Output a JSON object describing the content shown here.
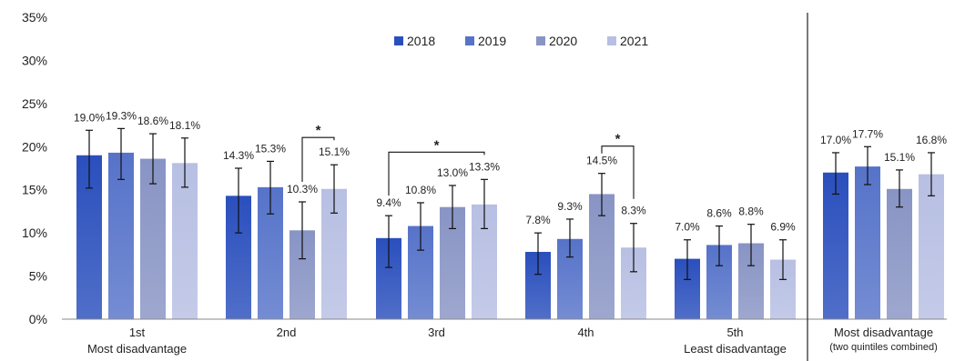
{
  "chart_data": {
    "type": "bar",
    "title": "",
    "ylim": [
      0,
      35
    ],
    "yticks": [
      "0%",
      "5%",
      "10%",
      "15%",
      "20%",
      "25%",
      "30%",
      "35%"
    ],
    "legend_position": "top-center",
    "series": [
      {
        "name": "2018",
        "color": "#2a4fbd"
      },
      {
        "name": "2019",
        "color": "#5673c9"
      },
      {
        "name": "2020",
        "color": "#8894c4"
      },
      {
        "name": "2021",
        "color": "#b7bfe3"
      }
    ],
    "groups": [
      {
        "label": "1st",
        "sublabel": "Most disadvantage",
        "values": [
          19.0,
          19.3,
          18.6,
          18.1
        ],
        "labels": [
          "19.0%",
          "19.3%",
          "18.6%",
          "18.1%"
        ],
        "err_low": [
          15.2,
          16.2,
          15.7,
          15.3
        ],
        "err_high": [
          21.9,
          22.1,
          21.5,
          21.0
        ]
      },
      {
        "label": "2nd",
        "sublabel": "",
        "values": [
          14.3,
          15.3,
          10.3,
          15.1
        ],
        "labels": [
          "14.3%",
          "15.3%",
          "10.3%",
          "15.1%"
        ],
        "err_low": [
          10.0,
          12.2,
          7.0,
          12.3
        ],
        "err_high": [
          17.5,
          18.3,
          13.6,
          17.9
        ]
      },
      {
        "label": "3rd",
        "sublabel": "",
        "values": [
          9.4,
          10.8,
          13.0,
          13.3
        ],
        "labels": [
          "9.4%",
          "10.8%",
          "13.0%",
          "13.3%"
        ],
        "err_low": [
          6.0,
          8.0,
          10.5,
          10.5
        ],
        "err_high": [
          12.0,
          13.5,
          15.5,
          16.2
        ]
      },
      {
        "label": "4th",
        "sublabel": "",
        "values": [
          7.8,
          9.3,
          14.5,
          8.3
        ],
        "labels": [
          "7.8%",
          "9.3%",
          "14.5%",
          "8.3%"
        ],
        "err_low": [
          5.2,
          7.2,
          12.0,
          5.5
        ],
        "err_high": [
          10.0,
          11.6,
          16.9,
          11.1
        ]
      },
      {
        "label": "5th",
        "sublabel": "Least disadvantage",
        "values": [
          7.0,
          8.6,
          8.8,
          6.9
        ],
        "labels": [
          "7.0%",
          "8.6%",
          "8.8%",
          "6.9%"
        ],
        "err_low": [
          4.6,
          6.2,
          6.2,
          4.6
        ],
        "err_high": [
          9.2,
          10.8,
          11.0,
          9.2
        ]
      },
      {
        "label": "Most disadvantage",
        "sublabel": "(two quintiles combined)",
        "values": [
          17.0,
          17.7,
          15.1,
          16.8
        ],
        "labels": [
          "17.0%",
          "17.7%",
          "15.1%",
          "16.8%"
        ],
        "err_low": [
          14.5,
          15.6,
          13.0,
          14.3
        ],
        "err_high": [
          19.3,
          20.0,
          17.3,
          19.3
        ]
      }
    ],
    "significance": [
      {
        "group": 1,
        "from_series": 2,
        "to_series": 3,
        "marker": "*"
      },
      {
        "group": 2,
        "from_series": 0,
        "to_series": 3,
        "marker": "*"
      },
      {
        "group": 3,
        "from_series": 2,
        "to_series": 3,
        "marker": "*"
      }
    ]
  }
}
